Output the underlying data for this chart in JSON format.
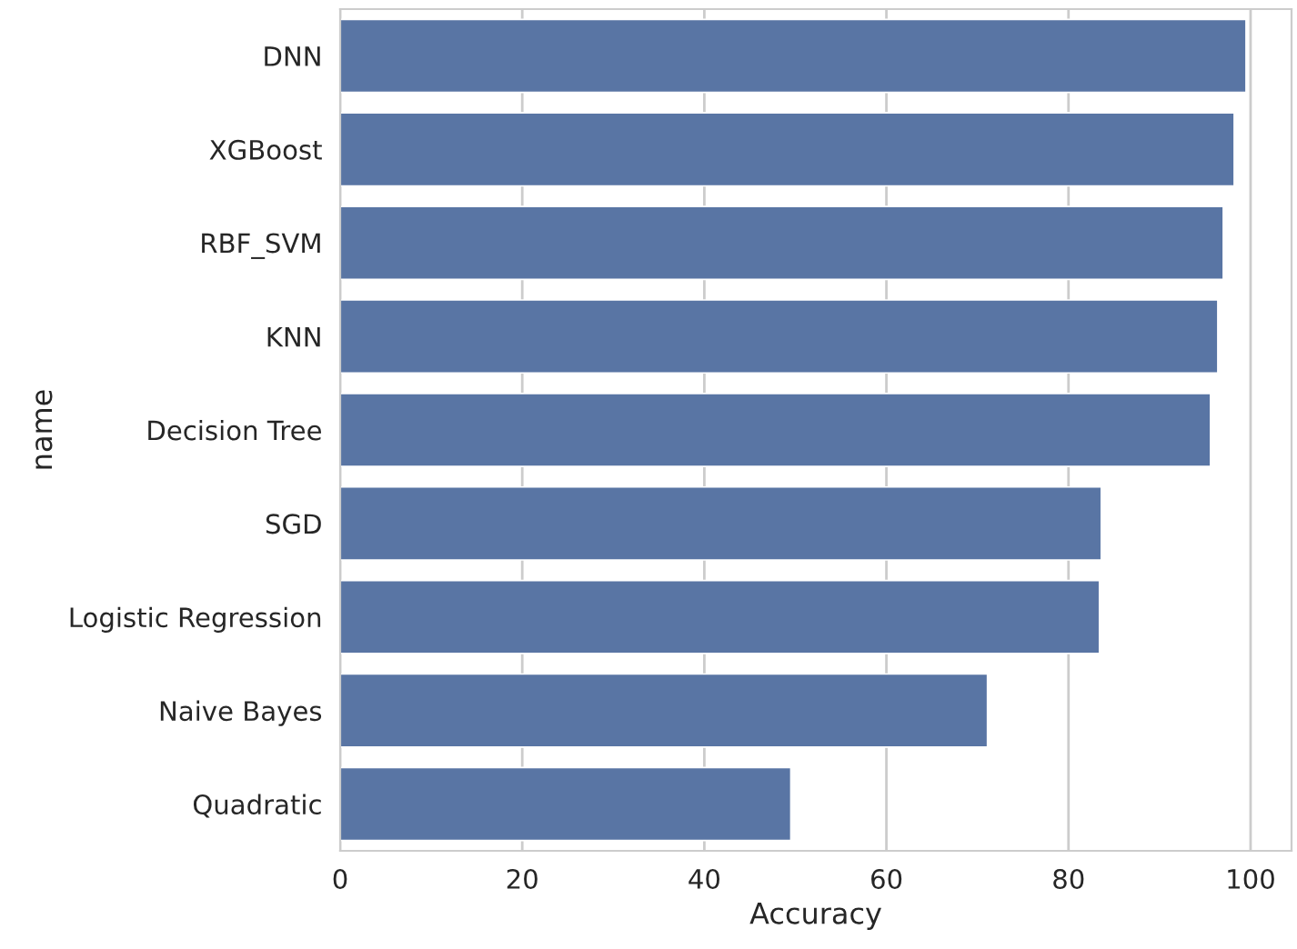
{
  "chart_data": {
    "type": "bar",
    "orientation": "horizontal",
    "xlabel": "Accuracy",
    "ylabel": "name",
    "categories": [
      "DNN",
      "XGBoost",
      "RBF_SVM",
      "KNN",
      "Decision Tree",
      "SGD",
      "Logistic Regression",
      "Naive Bayes",
      "Quadratic"
    ],
    "values": [
      99.5,
      98.2,
      97.0,
      96.4,
      95.6,
      83.6,
      83.4,
      71.1,
      49.5
    ],
    "color": "#5975a4",
    "xlim": [
      0,
      104.5
    ],
    "xticks": [
      0,
      20,
      40,
      60,
      80,
      100
    ],
    "grid": "x",
    "legend": false
  }
}
